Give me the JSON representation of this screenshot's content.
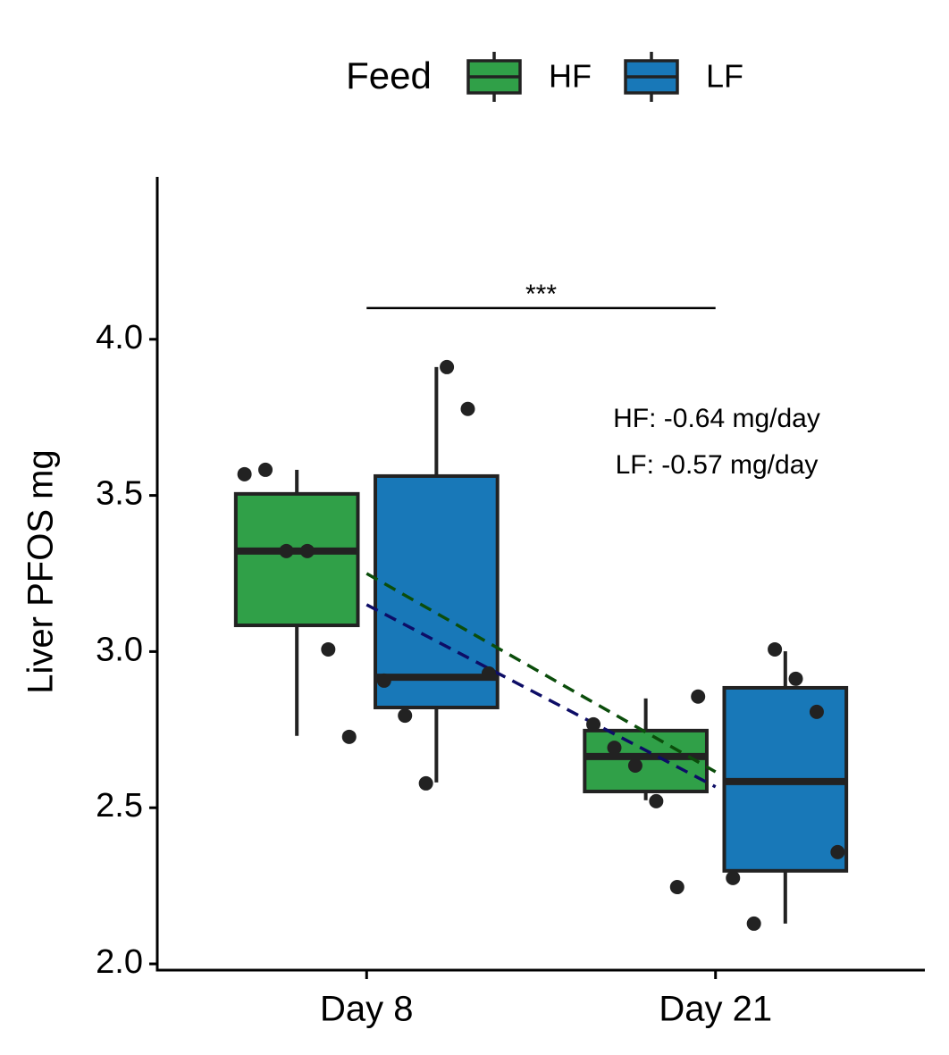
{
  "chart_data": {
    "type": "box",
    "y_label": "Liver PFOS mg",
    "legend_title": "Feed",
    "legend_position": "top",
    "categories": [
      "Day 8",
      "Day 21"
    ],
    "ylim": [
      1.98,
      4.52
    ],
    "yticks": [
      {
        "value": 2,
        "label": "2.0"
      },
      2.5,
      {
        "value": 3,
        "label": "3.0"
      },
      3.5,
      {
        "value": 4,
        "label": "4.0"
      }
    ],
    "series": [
      {
        "name": "HF",
        "color": "#30a048",
        "boxes": [
          {
            "whisker_low": 2.73,
            "q1": 3.084,
            "median": 3.322,
            "q3": 3.505,
            "whisker_high": 3.582
          },
          {
            "whisker_low": 2.524,
            "q1": 2.552,
            "median": 2.664,
            "q3": 2.747,
            "whisker_high": 2.85
          }
        ],
        "points": [
          [
            3.568,
            3.582,
            3.322,
            3.322,
            3.007,
            2.727
          ],
          [
            2.856,
            2.767,
            2.692,
            2.635,
            2.521,
            2.246
          ]
        ]
      },
      {
        "name": "LF",
        "color": "#1878b8",
        "boxes": [
          {
            "whisker_low": 2.581,
            "q1": 2.821,
            "median": 2.918,
            "q3": 3.562,
            "whisker_high": 3.911
          },
          {
            "whisker_low": 2.129,
            "q1": 2.298,
            "median": 2.584,
            "q3": 2.884,
            "whisker_high": 3.001
          }
        ],
        "points": [
          [
            3.911,
            3.777,
            2.93,
            2.907,
            2.795,
            2.578
          ],
          [
            3.007,
            2.913,
            2.807,
            2.358,
            2.275,
            2.129
          ]
        ]
      }
    ],
    "trend_lines": [
      {
        "color": "#0b4d0b",
        "values": [
          3.25,
          2.615
        ]
      },
      {
        "color": "#0d0d66",
        "values": [
          3.15,
          2.567
        ]
      }
    ],
    "significance": {
      "y": 4.1,
      "label": "***"
    },
    "annotations": [
      "HF: -0.64 mg/day",
      "LF: -0.57 mg/day"
    ]
  }
}
